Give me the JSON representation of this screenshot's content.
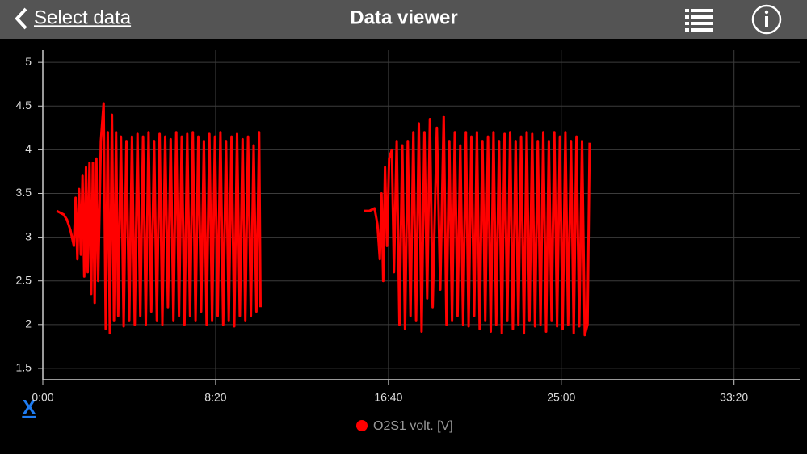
{
  "header": {
    "back": "Select data",
    "title": "Data viewer"
  },
  "reset_link": "X",
  "chart_data": {
    "type": "line",
    "x": [
      40,
      50,
      60,
      70,
      80,
      90,
      95,
      100,
      105,
      110,
      115,
      120,
      125,
      130,
      135,
      140,
      145,
      150,
      155,
      160,
      168,
      176,
      182,
      188,
      194,
      200,
      206,
      212,
      218,
      226,
      234,
      242,
      250,
      258,
      266,
      274,
      282,
      290,
      298,
      306,
      314,
      322,
      330,
      338,
      346,
      354,
      362,
      370,
      378,
      386,
      394,
      402,
      410,
      418,
      426,
      434,
      442,
      450,
      458,
      466,
      474,
      482,
      490,
      498,
      506,
      514,
      522,
      530,
      538,
      546,
      554,
      562,
      570,
      578,
      586,
      594,
      602,
      610,
      618,
      626,
      630,
      780,
      928,
      945,
      960,
      968,
      975,
      980,
      985,
      990,
      996,
      1002,
      1010,
      1016,
      1024,
      1032,
      1040,
      1048,
      1056,
      1064,
      1072,
      1080,
      1088,
      1096,
      1104,
      1112,
      1120,
      1128,
      1140,
      1150,
      1160,
      1168,
      1176,
      1184,
      1192,
      1200,
      1208,
      1216,
      1224,
      1232,
      1240,
      1248,
      1256,
      1264,
      1272,
      1280,
      1288,
      1296,
      1304,
      1312,
      1320,
      1328,
      1336,
      1344,
      1352,
      1360,
      1368,
      1376,
      1384,
      1392,
      1400,
      1408,
      1416,
      1424,
      1432,
      1440,
      1448,
      1456,
      1464,
      1472,
      1480,
      1488,
      1496,
      1504,
      1512,
      1520,
      1528,
      1536,
      1544,
      1552,
      1560,
      1568,
      1576,
      1582
    ],
    "series": [
      {
        "name": "O2S1 volt. [V]",
        "color": "#ff0000",
        "values": [
          3.3,
          3.28,
          3.26,
          3.2,
          3.08,
          2.9,
          3.45,
          2.75,
          3.55,
          2.8,
          3.7,
          2.55,
          3.8,
          2.6,
          3.85,
          2.35,
          3.85,
          2.25,
          3.9,
          2.5,
          4.1,
          4.53,
          1.95,
          4.2,
          1.9,
          4.4,
          2.05,
          4.2,
          2.1,
          4.15,
          1.98,
          4.1,
          2.05,
          4.15,
          2.0,
          4.18,
          2.1,
          4.15,
          2.0,
          4.2,
          2.15,
          4.1,
          2.05,
          4.18,
          2.0,
          4.15,
          2.2,
          4.12,
          2.05,
          4.2,
          2.1,
          4.15,
          2.0,
          4.18,
          2.1,
          4.2,
          2.05,
          4.15,
          2.15,
          4.1,
          2.0,
          4.18,
          2.05,
          4.15,
          2.1,
          4.2,
          2.0,
          4.1,
          2.05,
          4.15,
          1.98,
          4.18,
          2.1,
          4.12,
          2.05,
          4.15,
          2.1,
          4.05,
          2.15,
          4.2,
          2.2,
          null,
          3.3,
          3.3,
          3.33,
          3.15,
          2.75,
          3.5,
          2.5,
          3.8,
          2.9,
          3.9,
          4.0,
          2.6,
          4.1,
          2.0,
          4.05,
          1.95,
          4.1,
          2.1,
          4.2,
          2.05,
          4.3,
          1.92,
          4.2,
          2.3,
          4.35,
          2.2,
          4.25,
          2.4,
          4.38,
          2.0,
          4.1,
          2.05,
          4.2,
          2.1,
          4.05,
          2.0,
          4.2,
          1.98,
          4.15,
          2.1,
          4.2,
          1.95,
          4.1,
          2.05,
          4.15,
          1.92,
          4.2,
          2.0,
          4.1,
          1.9,
          4.18,
          2.05,
          4.2,
          1.95,
          4.1,
          2.0,
          4.15,
          1.9,
          4.2,
          2.05,
          4.18,
          1.98,
          4.1,
          2.0,
          4.2,
          1.92,
          4.1,
          2.05,
          4.2,
          1.98,
          4.15,
          1.95,
          4.2,
          2.0,
          4.1,
          1.9,
          4.15,
          1.98,
          4.1,
          1.88,
          2.0,
          4.08
        ]
      }
    ],
    "xlim": [
      0,
      2190
    ],
    "ylim": [
      1.37,
      5.14
    ],
    "xticks": [
      {
        "value": 0,
        "label": "0:00"
      },
      {
        "value": 500,
        "label": "8:20"
      },
      {
        "value": 1000,
        "label": "16:40"
      },
      {
        "value": 1500,
        "label": "25:00"
      },
      {
        "value": 2000,
        "label": "33:20"
      }
    ],
    "yticks": [
      1.5,
      2,
      2.5,
      3,
      3.5,
      4,
      4.5,
      5
    ],
    "grid": true
  }
}
